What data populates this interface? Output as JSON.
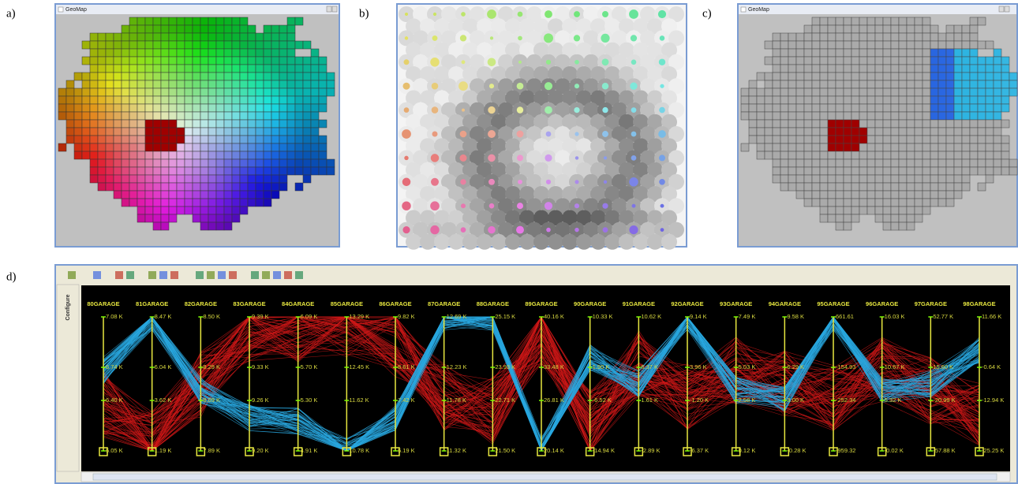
{
  "panels": [
    {
      "label": "a)",
      "window_title": "GeoMap"
    },
    {
      "label": "b)"
    },
    {
      "label": "c)",
      "window_title": "GeoMap"
    },
    {
      "label": "d)",
      "sidebar": "Configure",
      "axes": [
        {
          "name": "80GARAGE",
          "ticks": [
            "7.08 K",
            "6.74 K",
            "6.40 K",
            "6.05 K"
          ]
        },
        {
          "name": "81GARAGE",
          "ticks": [
            "8.47 K",
            "6.04 K",
            "3.62 K",
            "1.19 K"
          ]
        },
        {
          "name": "82GARAGE",
          "ticks": [
            "8.50 K",
            "8.29 K",
            "8.09 K",
            "7.89 K"
          ]
        },
        {
          "name": "83GARAGE",
          "ticks": [
            "9.39 K",
            "9.33 K",
            "9.26 K",
            "9.20 K"
          ]
        },
        {
          "name": "84GARAGE",
          "ticks": [
            "6.09 K",
            "5.70 K",
            "5.30 K",
            "4.91 K"
          ]
        },
        {
          "name": "85GARAGE",
          "ticks": [
            "13.29 K",
            "12.45 K",
            "11.62 K",
            "10.78 K"
          ]
        },
        {
          "name": "86GARAGE",
          "ticks": [
            "9.82 K",
            "8.61 K",
            "7.42 K",
            "6.19 K"
          ]
        },
        {
          "name": "87GARAGE",
          "ticks": [
            "12.69 K",
            "12.23 K",
            "11.78 K",
            "11.32 K"
          ]
        },
        {
          "name": "88GARAGE",
          "ticks": [
            "25.15 K",
            "23.93 K",
            "22.71 K",
            "21.50 K"
          ]
        },
        {
          "name": "89GARAGE",
          "ticks": [
            "40.16 K",
            "33.48 K",
            "26.81 K",
            "20.14 K"
          ]
        },
        {
          "name": "90GARAGE",
          "ticks": [
            "10.33 K",
            "1.90 K",
            "-6.52 K",
            "-14.94 K"
          ]
        },
        {
          "name": "91GARAGE",
          "ticks": [
            "10.62 K",
            "6.37 K",
            "1.61 K",
            "-2.89 K"
          ]
        },
        {
          "name": "92GARAGE",
          "ticks": [
            "9.14 K",
            "3.96 K",
            "-1.20 K",
            "-6.37 K"
          ]
        },
        {
          "name": "93GARAGE",
          "ticks": [
            "7.49 K",
            "5.03 K",
            "2.58 K",
            "0.12 K"
          ]
        },
        {
          "name": "94GARAGE",
          "ticks": [
            "9.58 K",
            "6.29 K",
            "3.00 K",
            "-0.28 K"
          ]
        },
        {
          "name": "95GARAGE",
          "ticks": [
            "661.61",
            "-154.93",
            "-252.34",
            "-959.32"
          ]
        },
        {
          "name": "96GARAGE",
          "ticks": [
            "16.03 K",
            "10.67 K",
            "5.32 K",
            "-0.02 K"
          ]
        },
        {
          "name": "97GARAGE",
          "ticks": [
            "52.77 K",
            "15.60 K",
            "-20.99 K",
            "-57.88 K"
          ]
        },
        {
          "name": "98GARAGE",
          "ticks": [
            "11.66 K",
            "-0.64 K",
            "-12.94 K",
            "-25.25 K"
          ]
        }
      ]
    }
  ]
}
